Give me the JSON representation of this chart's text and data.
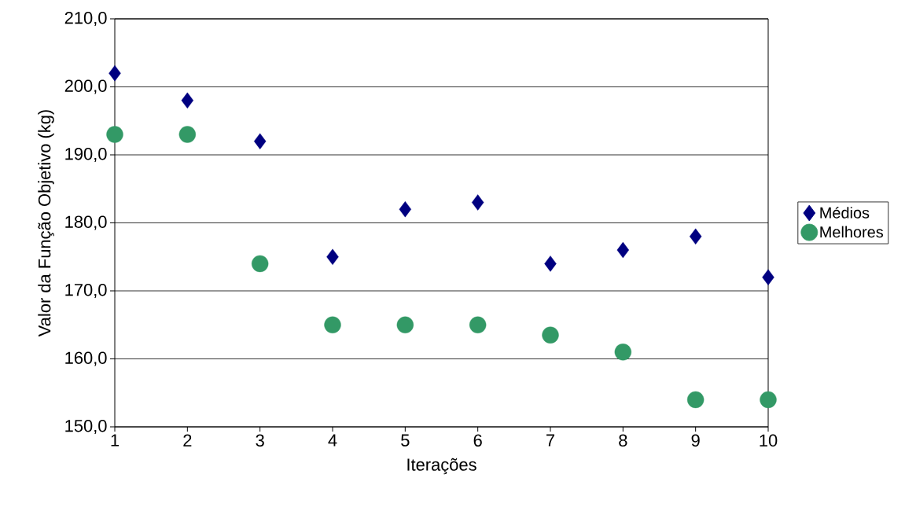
{
  "chart_data": {
    "type": "scatter",
    "xlabel": "Iterações",
    "ylabel": "Valor da Função Objetivo (kg)",
    "x": [
      1,
      2,
      3,
      4,
      5,
      6,
      7,
      8,
      9,
      10
    ],
    "series": [
      {
        "name": "Médios",
        "color": "#000080",
        "marker": "diamond",
        "values": [
          202,
          198,
          192,
          175,
          182,
          183,
          174,
          176,
          178,
          172
        ]
      },
      {
        "name": "Melhores",
        "color": "#339966",
        "marker": "circle",
        "values": [
          193,
          193,
          174,
          165,
          165,
          165,
          163.5,
          161,
          154,
          154
        ]
      }
    ],
    "xlim": [
      1,
      10
    ],
    "xticks": [
      1,
      2,
      3,
      4,
      5,
      6,
      7,
      8,
      9,
      10
    ],
    "ylim": [
      150,
      210
    ],
    "yticks": [
      {
        "value": 150,
        "label": "150,0"
      },
      {
        "value": 160,
        "label": "160,0"
      },
      {
        "value": 170,
        "label": "170,0"
      },
      {
        "value": 180,
        "label": "180,0"
      },
      {
        "value": 190,
        "label": "190,0"
      },
      {
        "value": 200,
        "label": "200,0"
      },
      {
        "value": 210,
        "label": "210,0"
      }
    ],
    "grid": "y",
    "legend": "right"
  }
}
